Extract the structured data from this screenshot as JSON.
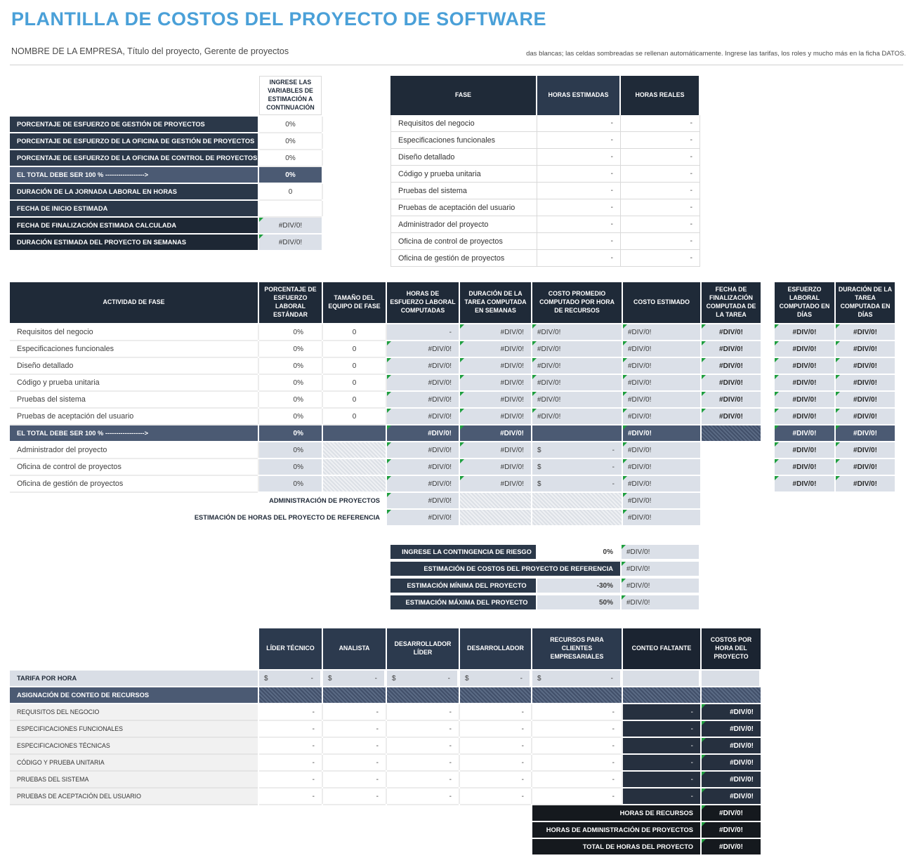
{
  "page": {
    "title": "PLANTILLA DE COSTOS DEL PROYECTO DE SOFTWARE",
    "subtitle": "NOMBRE DE LA EMPRESA, Título del proyecto, Gerente de proyectos",
    "note": "das blancas; las celdas sombreadas se rellenan automáticamente.  Ingrese las tarifas, los roles y mucho más en la ficha DATOS."
  },
  "colors": {
    "accent_blue": "#4aa0d8",
    "header_navy": "#1f2a38",
    "header_navy_light": "#2c3a4e",
    "total_slate": "#4b5a73",
    "shaded_cell": "#dbe0e8",
    "label_gray": "#f1f1f1",
    "dark_value_cell": "#26303f",
    "footer_black": "#15191e",
    "error_triangle_green": "#1f9f3f"
  },
  "error_value": "#DIV/0!",
  "estimation_table": {
    "header": "INGRESE LAS VARIABLES DE ESTIMACIÓN A CONTINUACIÓN",
    "rows": [
      {
        "label": "PORCENTAJE DE ESFUERZO DE GESTIÓN DE PROYECTOS",
        "value": "0%",
        "style": "input"
      },
      {
        "label": "PORCENTAJE DE ESFUERZO DE LA OFICINA DE GESTIÓN DE PROYECTOS",
        "value": "0%",
        "style": "input"
      },
      {
        "label": "PORCENTAJE DE ESFUERZO DE LA OFICINA DE CONTROL DE PROYECTOS",
        "value": "0%",
        "style": "input"
      },
      {
        "label": "EL TOTAL DEBE SER 100 % ------------------>",
        "value": "0%",
        "style": "total"
      },
      {
        "label": "DURACIÓN DE LA JORNADA LABORAL EN HORAS",
        "value": "0",
        "style": "input"
      },
      {
        "label": "FECHA DE INICIO ESTIMADA",
        "value": "",
        "style": "input"
      },
      {
        "label": "FECHA DE FINALIZACIÓN ESTIMADA CALCULADA",
        "value": "#DIV/0!",
        "style": "calc"
      },
      {
        "label": "DURACIÓN ESTIMADA DEL PROYECTO EN SEMANAS",
        "value": "#DIV/0!",
        "style": "calc"
      }
    ]
  },
  "phase_hours_table": {
    "columns": [
      "FASE",
      "HORAS ESTIMADAS",
      "HORAS REALES"
    ],
    "rows": [
      {
        "phase": "Requisitos del negocio",
        "estimated": "-",
        "actual": "-"
      },
      {
        "phase": "Especificaciones funcionales",
        "estimated": "-",
        "actual": "-"
      },
      {
        "phase": "Diseño detallado",
        "estimated": "-",
        "actual": "-"
      },
      {
        "phase": "Código y prueba unitaria",
        "estimated": "-",
        "actual": "-"
      },
      {
        "phase": "Pruebas del sistema",
        "estimated": "-",
        "actual": "-"
      },
      {
        "phase": "Pruebas de aceptación del usuario",
        "estimated": "-",
        "actual": "-"
      },
      {
        "phase": "Administrador del proyecto",
        "estimated": "-",
        "actual": "-"
      },
      {
        "phase": "Oficina de control de proyectos",
        "estimated": "-",
        "actual": "-"
      },
      {
        "phase": "Oficina de gestión de proyectos",
        "estimated": "-",
        "actual": "-"
      }
    ]
  },
  "activity_table": {
    "columns": [
      "ACTIVIDAD DE FASE",
      "PORCENTAJE DE ESFUERZO LABORAL ESTÁNDAR",
      "TAMAÑO DEL EQUIPO DE FASE",
      "HORAS DE ESFUERZO LABORAL COMPUTADAS",
      "DURACIÓN DE LA TAREA COMPUTADA EN SEMANAS",
      "COSTO PROMEDIO COMPUTADO POR HORA DE RECURSOS",
      "COSTO ESTIMADO",
      "FECHA DE FINALIZACIÓN COMPUTADA DE LA TAREA"
    ],
    "rows": [
      {
        "type": "data",
        "label": "Requisitos del negocio",
        "pct": "0%",
        "size": "0",
        "hours": "-",
        "weeks": "#DIV/0!",
        "avg": "#DIV/0!",
        "cost": "#DIV/0!",
        "date": "#DIV/0!"
      },
      {
        "type": "data",
        "label": "Especificaciones funcionales",
        "pct": "0%",
        "size": "0",
        "hours": "#DIV/0!",
        "weeks": "#DIV/0!",
        "avg": "#DIV/0!",
        "cost": "#DIV/0!",
        "date": "#DIV/0!"
      },
      {
        "type": "data",
        "label": "Diseño detallado",
        "pct": "0%",
        "size": "0",
        "hours": "#DIV/0!",
        "weeks": "#DIV/0!",
        "avg": "#DIV/0!",
        "cost": "#DIV/0!",
        "date": "#DIV/0!"
      },
      {
        "type": "data",
        "label": "Código y prueba unitaria",
        "pct": "0%",
        "size": "0",
        "hours": "#DIV/0!",
        "weeks": "#DIV/0!",
        "avg": "#DIV/0!",
        "cost": "#DIV/0!",
        "date": "#DIV/0!"
      },
      {
        "type": "data",
        "label": "Pruebas del sistema",
        "pct": "0%",
        "size": "0",
        "hours": "#DIV/0!",
        "weeks": "#DIV/0!",
        "avg": "#DIV/0!",
        "cost": "#DIV/0!",
        "date": "#DIV/0!"
      },
      {
        "type": "data",
        "label": "Pruebas de aceptación del usuario",
        "pct": "0%",
        "size": "0",
        "hours": "#DIV/0!",
        "weeks": "#DIV/0!",
        "avg": "#DIV/0!",
        "cost": "#DIV/0!",
        "date": "#DIV/0!"
      },
      {
        "type": "total",
        "label": "EL TOTAL DEBE SER 100 % ------------------>",
        "pct": "0%",
        "hours": "#DIV/0!",
        "weeks": "#DIV/0!",
        "cost": "#DIV/0!"
      },
      {
        "type": "pm",
        "label": "Administrador del proyecto",
        "pct": "0%",
        "hours": "#DIV/0!",
        "weeks": "#DIV/0!",
        "avg_currency": "$",
        "avg_amount": "-",
        "cost": "#DIV/0!"
      },
      {
        "type": "pm",
        "label": "Oficina de control de proyectos",
        "pct": "0%",
        "hours": "#DIV/0!",
        "weeks": "#DIV/0!",
        "avg_currency": "$",
        "avg_amount": "-",
        "cost": "#DIV/0!"
      },
      {
        "type": "pm",
        "label": "Oficina de gestión de proyectos",
        "pct": "0%",
        "hours": "#DIV/0!",
        "weeks": "#DIV/0!",
        "avg_currency": "$",
        "avg_amount": "-",
        "cost": "#DIV/0!"
      }
    ],
    "footer_rows": [
      {
        "label": "ADMINISTRACIÓN DE PROYECTOS",
        "hours": "#DIV/0!",
        "cost": "#DIV/0!"
      },
      {
        "label": "ESTIMACIÓN DE HORAS DEL PROYECTO DE REFERENCIA",
        "hours": "#DIV/0!",
        "cost": "#DIV/0!"
      }
    ]
  },
  "days_table": {
    "columns": [
      "ESFUERZO LABORAL COMPUTADO EN DÍAS",
      "DURACIÓN DE LA TAREA COMPUTADA EN DÍAS"
    ],
    "rows": [
      {
        "type": "data",
        "effort": "#DIV/0!",
        "duration": "#DIV/0!"
      },
      {
        "type": "data",
        "effort": "#DIV/0!",
        "duration": "#DIV/0!"
      },
      {
        "type": "data",
        "effort": "#DIV/0!",
        "duration": "#DIV/0!"
      },
      {
        "type": "data",
        "effort": "#DIV/0!",
        "duration": "#DIV/0!"
      },
      {
        "type": "data",
        "effort": "#DIV/0!",
        "duration": "#DIV/0!"
      },
      {
        "type": "data",
        "effort": "#DIV/0!",
        "duration": "#DIV/0!"
      },
      {
        "type": "total",
        "effort": "#DIV/0!",
        "duration": "#DIV/0!"
      },
      {
        "type": "data",
        "effort": "#DIV/0!",
        "duration": "#DIV/0!"
      },
      {
        "type": "data",
        "effort": "#DIV/0!",
        "duration": "#DIV/0!"
      },
      {
        "type": "data",
        "effort": "#DIV/0!",
        "duration": "#DIV/0!"
      }
    ]
  },
  "contingency_table": {
    "rows": [
      {
        "label": "INGRESE LA CONTINGENCIA DE RIESGO",
        "value": "0%",
        "result": "#DIV/0!",
        "style": "input"
      },
      {
        "label": "ESTIMACIÓN DE COSTOS DEL PROYECTO DE REFERENCIA",
        "value": "",
        "result": "#DIV/0!",
        "style": "merged"
      },
      {
        "label": "ESTIMACIÓN MÍNIMA DEL PROYECTO",
        "value": "-30%",
        "result": "#DIV/0!",
        "style": "calc"
      },
      {
        "label": "ESTIMACIÓN MÁXIMA DEL PROYECTO",
        "value": "50%",
        "result": "#DIV/0!",
        "style": "calc"
      }
    ]
  },
  "rates_table": {
    "columns": [
      "LÍDER TÉCNICO",
      "ANALISTA",
      "DESARROLLADOR LÍDER",
      "DESARROLLADOR",
      "RECURSOS PARA CLIENTES EMPRESARIALES",
      "CONTEO FALTANTE",
      "COSTOS POR HORA DEL PROYECTO"
    ],
    "rate_row": {
      "label": "TARIFA POR HORA",
      "currency": "$",
      "amount": "-"
    },
    "allocation_label": "ASIGNACIÓN DE CONTEO DE RECURSOS",
    "rows": [
      {
        "label": "REQUISITOS DEL NEGOCIO",
        "values": [
          "-",
          "-",
          "-",
          "-",
          "-"
        ],
        "missing": "-",
        "cost": "#DIV/0!"
      },
      {
        "label": "ESPECIFICACIONES FUNCIONALES",
        "values": [
          "-",
          "-",
          "-",
          "-",
          "-"
        ],
        "missing": "-",
        "cost": "#DIV/0!"
      },
      {
        "label": "ESPECIFICACIONES TÉCNICAS",
        "values": [
          "-",
          "-",
          "-",
          "-",
          "-"
        ],
        "missing": "-",
        "cost": "#DIV/0!"
      },
      {
        "label": "CÓDIGO Y PRUEBA UNITARIA",
        "values": [
          "-",
          "-",
          "-",
          "-",
          "-"
        ],
        "missing": "-",
        "cost": "#DIV/0!"
      },
      {
        "label": "PRUEBAS DEL SISTEMA",
        "values": [
          "-",
          "-",
          "-",
          "-",
          "-"
        ],
        "missing": "-",
        "cost": "#DIV/0!"
      },
      {
        "label": "PRUEBAS DE ACEPTACIÓN DEL USUARIO",
        "values": [
          "-",
          "-",
          "-",
          "-",
          "-"
        ],
        "missing": "-",
        "cost": "#DIV/0!"
      }
    ],
    "footer_rows": [
      {
        "label": "HORAS DE RECURSOS",
        "value": "#DIV/0!"
      },
      {
        "label": "HORAS DE ADMINISTRACIÓN DE PROYECTOS",
        "value": "#DIV/0!"
      },
      {
        "label": "TOTAL DE HORAS DEL PROYECTO",
        "value": "#DIV/0!"
      }
    ]
  }
}
